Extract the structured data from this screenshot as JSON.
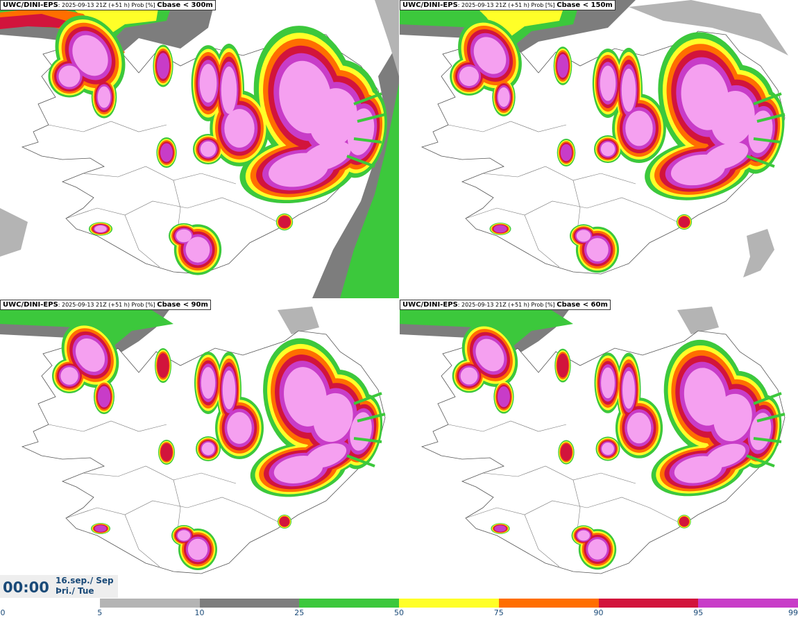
{
  "panels": [
    {
      "model": "UWC/DINI-EPS",
      "info": ": 2025-09-13 21Z (+51 h) Prob [%]",
      "threshold": "Cbase < 300m",
      "intensity": 1.0
    },
    {
      "model": "UWC/DINI-EPS",
      "info": ": 2025-09-13 21Z (+51 h) Prob [%]",
      "threshold": "Cbase < 150m",
      "intensity": 0.8
    },
    {
      "model": "UWC/DINI-EPS",
      "info": ": 2025-09-13 21Z (+51 h) Prob [%]",
      "threshold": "Cbase < 90m",
      "intensity": 0.6
    },
    {
      "model": "UWC/DINI-EPS",
      "info": ": 2025-09-13 21Z (+51 h) Prob [%]",
      "threshold": "Cbase < 60m",
      "intensity": 0.55
    }
  ],
  "time": {
    "hour": "00:00",
    "date_line1": "16.sep./ Sep",
    "date_line2": "Þri./ Tue"
  },
  "legend": {
    "ticks": [
      "0",
      "5",
      "10",
      "25",
      "50",
      "75",
      "90",
      "95",
      "99"
    ],
    "colors": [
      "#ffffff",
      "#b4b4b4",
      "#7d7d7d",
      "#3cc83c",
      "#ffff28",
      "#ff6e00",
      "#d2143c",
      "#c83cc8",
      "#f5a0f0"
    ]
  }
}
